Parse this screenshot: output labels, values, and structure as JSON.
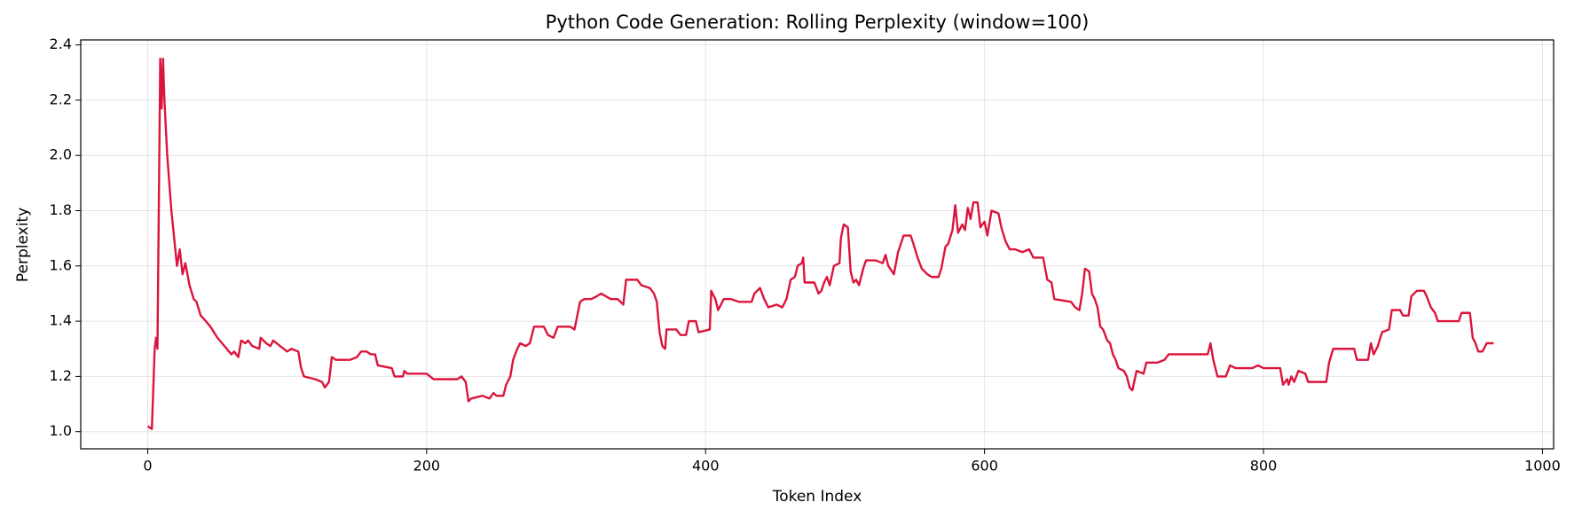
{
  "chart_data": {
    "type": "line",
    "title": "Python Code Generation: Rolling Perplexity (window=100)",
    "xlabel": "Token Index",
    "ylabel": "Perplexity",
    "color": "#dc143c",
    "grid": true,
    "xlim": [
      -48,
      1008
    ],
    "xticks": [
      0,
      200,
      400,
      600,
      800,
      1000
    ],
    "ylim": [
      0.938,
      2.418
    ],
    "yticks": [
      {
        "value": 1,
        "label": "1.0"
      },
      1.2,
      1.4,
      1.6,
      1.8,
      {
        "value": 2,
        "label": "2.0"
      },
      2.2,
      2.4
    ],
    "x": [
      0,
      3,
      5,
      6,
      7,
      9,
      10,
      11,
      12,
      14,
      17,
      20,
      21,
      23,
      25,
      27,
      30,
      33,
      35,
      38,
      40,
      45,
      50,
      55,
      60,
      62,
      65,
      67,
      70,
      72,
      75,
      80,
      81,
      85,
      88,
      90,
      95,
      100,
      103,
      108,
      110,
      112,
      120,
      125,
      127,
      130,
      132,
      135,
      140,
      145,
      150,
      153,
      157,
      160,
      163,
      165,
      175,
      177,
      183,
      184,
      186,
      200,
      205,
      215,
      222,
      225,
      228,
      230,
      232,
      240,
      245,
      248,
      250,
      255,
      257,
      260,
      262,
      265,
      267,
      271,
      274,
      277,
      284,
      287,
      291,
      294,
      303,
      306,
      310,
      313,
      318,
      322,
      325,
      332,
      337,
      341,
      343,
      351,
      354,
      360,
      363,
      365,
      367,
      369,
      371,
      372,
      379,
      382,
      386,
      388,
      393,
      395,
      403,
      404,
      407,
      409,
      413,
      418,
      424,
      433,
      435,
      439,
      442,
      445,
      451,
      455,
      458,
      461,
      464,
      466,
      469,
      470,
      471,
      478,
      481,
      483,
      485,
      487,
      489,
      492,
      496,
      497,
      499,
      502,
      504,
      506,
      508,
      510,
      513,
      515,
      522,
      527,
      529,
      531,
      535,
      538,
      542,
      547,
      549,
      552,
      555,
      559,
      562,
      567,
      569,
      572,
      574,
      577,
      579,
      581,
      584,
      586,
      588,
      590,
      592,
      595,
      597,
      600,
      602,
      605,
      610,
      612,
      615,
      618,
      622,
      627,
      632,
      635,
      642,
      645,
      648,
      650,
      662,
      665,
      668,
      670,
      672,
      675,
      677,
      679,
      681,
      683,
      685,
      688,
      690,
      692,
      694,
      696,
      700,
      702,
      704,
      706,
      709,
      714,
      716,
      724,
      729,
      732,
      760,
      762,
      764,
      767,
      773,
      776,
      780,
      792,
      796,
      800,
      812,
      814,
      817,
      818,
      820,
      822,
      825,
      830,
      832,
      845,
      847,
      850,
      865,
      867,
      875,
      877,
      879,
      882,
      885,
      890,
      892,
      898,
      900,
      904,
      906,
      910,
      915,
      917,
      920,
      923,
      925,
      930,
      935,
      940,
      942,
      948,
      950,
      952,
      954,
      957,
      960,
      965
    ],
    "values": [
      1.02,
      1.01,
      1.3,
      1.34,
      1.3,
      2.35,
      2.17,
      2.35,
      2.2,
      2.0,
      1.8,
      1.65,
      1.6,
      1.66,
      1.57,
      1.61,
      1.53,
      1.48,
      1.47,
      1.42,
      1.41,
      1.38,
      1.34,
      1.31,
      1.28,
      1.29,
      1.27,
      1.33,
      1.32,
      1.33,
      1.31,
      1.3,
      1.34,
      1.32,
      1.31,
      1.33,
      1.31,
      1.29,
      1.3,
      1.29,
      1.23,
      1.2,
      1.19,
      1.18,
      1.16,
      1.18,
      1.27,
      1.26,
      1.26,
      1.26,
      1.27,
      1.29,
      1.29,
      1.28,
      1.28,
      1.24,
      1.23,
      1.2,
      1.2,
      1.22,
      1.21,
      1.21,
      1.19,
      1.19,
      1.19,
      1.2,
      1.18,
      1.11,
      1.12,
      1.13,
      1.12,
      1.14,
      1.13,
      1.13,
      1.17,
      1.2,
      1.26,
      1.3,
      1.32,
      1.31,
      1.32,
      1.38,
      1.38,
      1.35,
      1.34,
      1.38,
      1.38,
      1.37,
      1.47,
      1.48,
      1.48,
      1.49,
      1.5,
      1.48,
      1.48,
      1.46,
      1.55,
      1.55,
      1.53,
      1.52,
      1.5,
      1.47,
      1.36,
      1.31,
      1.3,
      1.37,
      1.37,
      1.35,
      1.35,
      1.4,
      1.4,
      1.36,
      1.37,
      1.51,
      1.48,
      1.44,
      1.48,
      1.48,
      1.47,
      1.47,
      1.5,
      1.52,
      1.48,
      1.45,
      1.46,
      1.45,
      1.48,
      1.55,
      1.56,
      1.6,
      1.61,
      1.63,
      1.54,
      1.54,
      1.5,
      1.51,
      1.54,
      1.56,
      1.53,
      1.6,
      1.61,
      1.7,
      1.75,
      1.74,
      1.58,
      1.54,
      1.55,
      1.53,
      1.59,
      1.62,
      1.62,
      1.61,
      1.64,
      1.6,
      1.57,
      1.65,
      1.71,
      1.71,
      1.68,
      1.63,
      1.59,
      1.57,
      1.56,
      1.56,
      1.59,
      1.67,
      1.68,
      1.73,
      1.82,
      1.72,
      1.75,
      1.73,
      1.81,
      1.77,
      1.83,
      1.83,
      1.74,
      1.76,
      1.71,
      1.8,
      1.79,
      1.74,
      1.69,
      1.66,
      1.66,
      1.65,
      1.66,
      1.63,
      1.63,
      1.55,
      1.54,
      1.48,
      1.47,
      1.45,
      1.44,
      1.5,
      1.59,
      1.58,
      1.5,
      1.48,
      1.45,
      1.38,
      1.37,
      1.33,
      1.32,
      1.28,
      1.26,
      1.23,
      1.22,
      1.2,
      1.16,
      1.15,
      1.22,
      1.21,
      1.25,
      1.25,
      1.26,
      1.28,
      1.28,
      1.32,
      1.26,
      1.2,
      1.2,
      1.24,
      1.23,
      1.23,
      1.24,
      1.23,
      1.23,
      1.17,
      1.19,
      1.17,
      1.2,
      1.18,
      1.22,
      1.21,
      1.18,
      1.18,
      1.25,
      1.3,
      1.3,
      1.26,
      1.26,
      1.32,
      1.28,
      1.31,
      1.36,
      1.37,
      1.44,
      1.44,
      1.42,
      1.42,
      1.49,
      1.51,
      1.51,
      1.49,
      1.45,
      1.43,
      1.4,
      1.4,
      1.4,
      1.4,
      1.43,
      1.43,
      1.34,
      1.32,
      1.29,
      1.29,
      1.32,
      1.32
    ]
  }
}
